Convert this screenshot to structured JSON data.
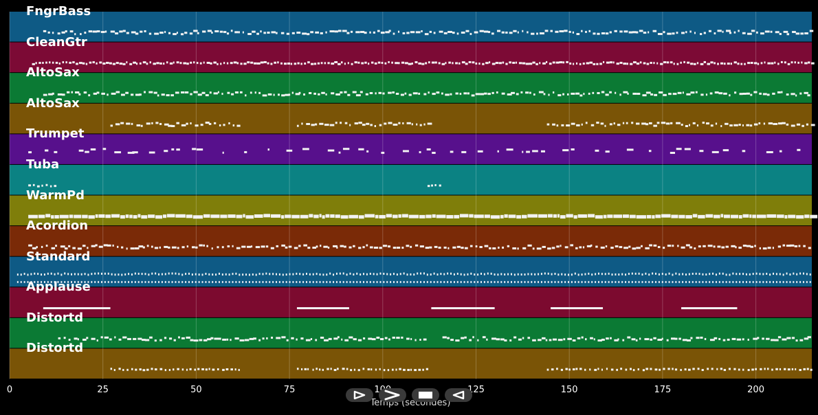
{
  "tracks": [
    {
      "name": "FngrBass",
      "color": "#0e5a85"
    },
    {
      "name": "CleanGtr",
      "color": "#7c0a35"
    },
    {
      "name": "AltoSax",
      "color": "#0b7a34"
    },
    {
      "name": "AltoSax",
      "color": "#7a5406"
    },
    {
      "name": "Trumpet",
      "color": "#57108c"
    },
    {
      "name": "Tuba",
      "color": "#0b8283"
    },
    {
      "name": "WarmPd",
      "color": "#7f7e0a"
    },
    {
      "name": "Acordion",
      "color": "#7a2a07"
    },
    {
      "name": "Standard",
      "color": "#0e5a85"
    },
    {
      "name": "Applause",
      "color": "#7c0a2f"
    },
    {
      "name": "Distortd",
      "color": "#0b7a34"
    },
    {
      "name": "Distortd",
      "color": "#7a5406"
    }
  ],
  "axis": {
    "xlabel": "Temps (secondes)",
    "ticks": [
      "0",
      "25",
      "50",
      "75",
      "100",
      "125",
      "150",
      "175",
      "200"
    ],
    "xlim": [
      0,
      215
    ]
  },
  "controls": [
    {
      "name": "play",
      "icon": "play-icon"
    },
    {
      "name": "forward",
      "icon": "forward-icon"
    },
    {
      "name": "stop",
      "icon": "stop-icon"
    },
    {
      "name": "rewind",
      "icon": "rewind-icon"
    }
  ]
}
